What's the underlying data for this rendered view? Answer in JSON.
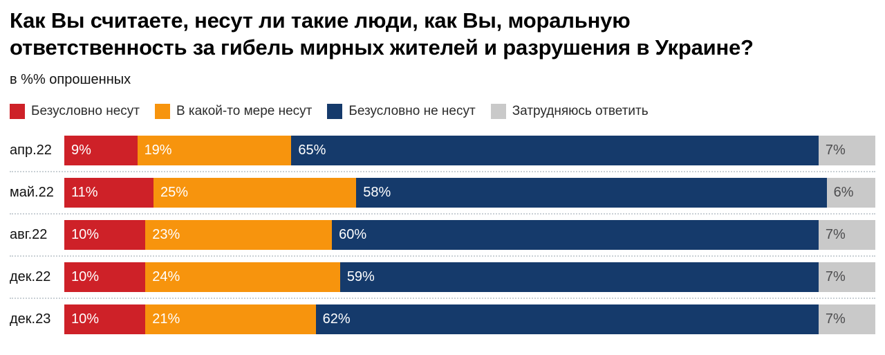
{
  "chart_data": {
    "type": "bar",
    "orientation": "horizontal",
    "stacked": true,
    "unit": "%",
    "title": "Как Вы считаете, несут ли такие люди, как Вы, моральную ответственность за гибель мирных жителей и разрушения в Украине?",
    "subtitle": "в %% опрошенных",
    "legend_position": "top",
    "xlim": [
      0,
      100
    ],
    "grid": false,
    "value_label_suffix": "%",
    "categories": [
      "апр.22",
      "май.22",
      "авг.22",
      "дек.22",
      "дек.23"
    ],
    "series": [
      {
        "name": "Безусловно несут",
        "color": "#CE2128",
        "label_color": "#ffffff",
        "values": [
          9,
          11,
          10,
          10,
          10
        ]
      },
      {
        "name": "В какой-то мере несут",
        "color": "#F7940D",
        "label_color": "#ffffff",
        "values": [
          19,
          25,
          23,
          24,
          21
        ]
      },
      {
        "name": "Безусловно не несут",
        "color": "#153A6B",
        "label_color": "#ffffff",
        "values": [
          65,
          58,
          60,
          59,
          62
        ]
      },
      {
        "name": "Затрудняюсь ответить",
        "color": "#C9C9C9",
        "label_color": "#4d4d4f",
        "values": [
          7,
          6,
          7,
          7,
          7
        ]
      }
    ]
  }
}
